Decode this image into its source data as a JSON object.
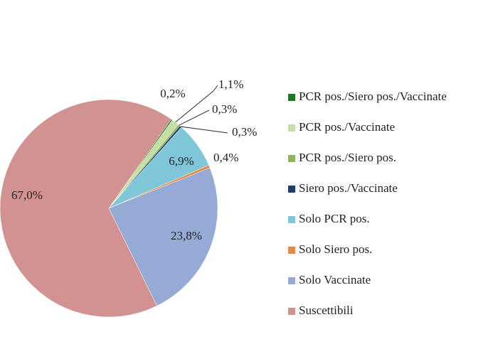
{
  "chart_data": {
    "type": "pie",
    "categories": [
      "PCR pos./Siero pos./Vaccinate",
      "PCR pos./Vaccinate",
      "PCR pos./Siero pos.",
      "Siero pos./Vaccinate",
      "Solo PCR pos.",
      "Solo Siero pos.",
      "Solo Vaccinate",
      "Suscettibili"
    ],
    "values": [
      0.2,
      1.1,
      0.3,
      0.3,
      6.9,
      0.4,
      23.8,
      67.0
    ],
    "value_labels": [
      "0,2%",
      "1,1%",
      "0,3%",
      "0,3%",
      "6,9%",
      "0,4%",
      "23,8%",
      "67,0%"
    ],
    "colors": [
      "#1b7a1f",
      "#c3dfa3",
      "#8eb45c",
      "#1f3d6b",
      "#7fc6d8",
      "#e8883a",
      "#95aad4",
      "#d39292"
    ]
  }
}
